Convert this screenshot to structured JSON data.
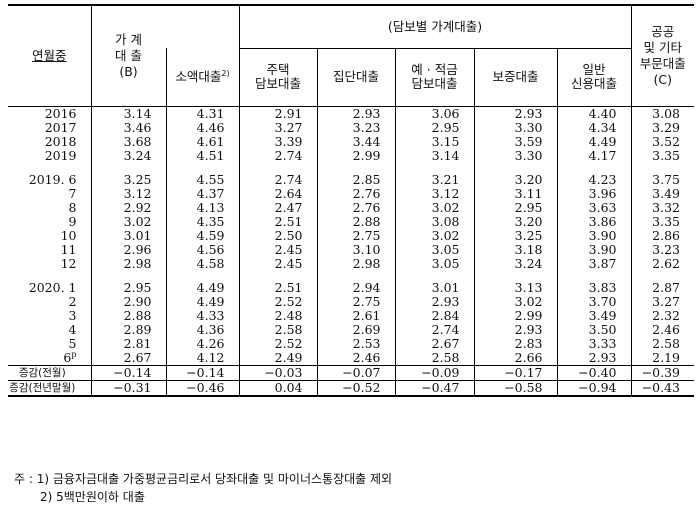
{
  "header": {
    "row_label": "연월중",
    "household_loan": "가 계\n대 출\n(B)",
    "collateral_group": "(담보별 가계대출)",
    "small_loan": "소액대출",
    "small_loan_sup": "2)",
    "housing": "주택\n담보대출",
    "group_loan": "집단대출",
    "deposit_secured": "예 · 적금\n담보대출",
    "guarantee": "보증대출",
    "general_credit": "일반\n신용대출",
    "public_other": "공공\n및 기타\n부문대출\n(C)"
  },
  "rows_year": [
    {
      "label": "2016",
      "values": [
        "3.14",
        "4.31",
        "2.91",
        "2.93",
        "3.06",
        "2.93",
        "4.40",
        "3.08"
      ]
    },
    {
      "label": "2017",
      "values": [
        "3.46",
        "4.46",
        "3.27",
        "3.23",
        "2.95",
        "3.30",
        "4.34",
        "3.29"
      ]
    },
    {
      "label": "2018",
      "values": [
        "3.68",
        "4.61",
        "3.39",
        "3.44",
        "3.15",
        "3.59",
        "4.49",
        "3.52"
      ]
    },
    {
      "label": "2019",
      "values": [
        "3.24",
        "4.51",
        "2.74",
        "2.99",
        "3.14",
        "3.30",
        "4.17",
        "3.35"
      ]
    }
  ],
  "rows_2019": [
    {
      "label": "2019. 6",
      "values": [
        "3.25",
        "4.55",
        "2.74",
        "2.85",
        "3.21",
        "3.20",
        "4.23",
        "3.75"
      ]
    },
    {
      "label": "7",
      "values": [
        "3.12",
        "4.37",
        "2.64",
        "2.76",
        "3.12",
        "3.11",
        "3.96",
        "3.49"
      ]
    },
    {
      "label": "8",
      "values": [
        "2.92",
        "4.13",
        "2.47",
        "2.76",
        "3.02",
        "2.95",
        "3.63",
        "3.32"
      ]
    },
    {
      "label": "9",
      "values": [
        "3.02",
        "4.35",
        "2.51",
        "2.88",
        "3.08",
        "3.20",
        "3.86",
        "3.35"
      ]
    },
    {
      "label": "10",
      "values": [
        "3.01",
        "4.59",
        "2.50",
        "2.75",
        "3.02",
        "3.25",
        "3.90",
        "2.86"
      ]
    },
    {
      "label": "11",
      "values": [
        "2.96",
        "4.56",
        "2.45",
        "3.10",
        "3.05",
        "3.18",
        "3.90",
        "3.23"
      ]
    },
    {
      "label": "12",
      "values": [
        "2.98",
        "4.58",
        "2.45",
        "2.98",
        "3.05",
        "3.24",
        "3.87",
        "2.62"
      ]
    }
  ],
  "rows_2020": [
    {
      "label": "2020. 1",
      "values": [
        "2.95",
        "4.49",
        "2.51",
        "2.94",
        "3.01",
        "3.13",
        "3.83",
        "2.87"
      ]
    },
    {
      "label": "2",
      "values": [
        "2.90",
        "4.49",
        "2.52",
        "2.75",
        "2.93",
        "3.02",
        "3.70",
        "3.27"
      ]
    },
    {
      "label": "3",
      "values": [
        "2.88",
        "4.33",
        "2.48",
        "2.61",
        "2.84",
        "2.99",
        "3.49",
        "2.32"
      ]
    },
    {
      "label": "4",
      "values": [
        "2.89",
        "4.36",
        "2.58",
        "2.69",
        "2.74",
        "2.93",
        "3.50",
        "2.46"
      ]
    },
    {
      "label": "5",
      "values": [
        "2.81",
        "4.26",
        "2.52",
        "2.53",
        "2.67",
        "2.83",
        "3.33",
        "2.58"
      ]
    },
    {
      "label": "6",
      "label_sup": "p",
      "values": [
        "2.67",
        "4.12",
        "2.49",
        "2.46",
        "2.58",
        "2.66",
        "2.93",
        "2.19"
      ]
    }
  ],
  "change_mom": {
    "label": "증감(전월)",
    "values": [
      "-0.14",
      "-0.14",
      "-0.03",
      "-0.07",
      "-0.09",
      "-0.17",
      "-0.40",
      "-0.39"
    ]
  },
  "change_yoy": {
    "label": "증감(전년말월)",
    "values": [
      "-0.31",
      "-0.46",
      "0.04",
      "-0.52",
      "-0.47",
      "-0.58",
      "-0.94",
      "-0.43"
    ]
  },
  "notes": {
    "prefix": "주  :",
    "note1": "1) 금융자금대출 가중평균금리로서 당좌대출 및 마이너스통장대출 제외",
    "note2": "2) 5백만원이하 대출"
  }
}
